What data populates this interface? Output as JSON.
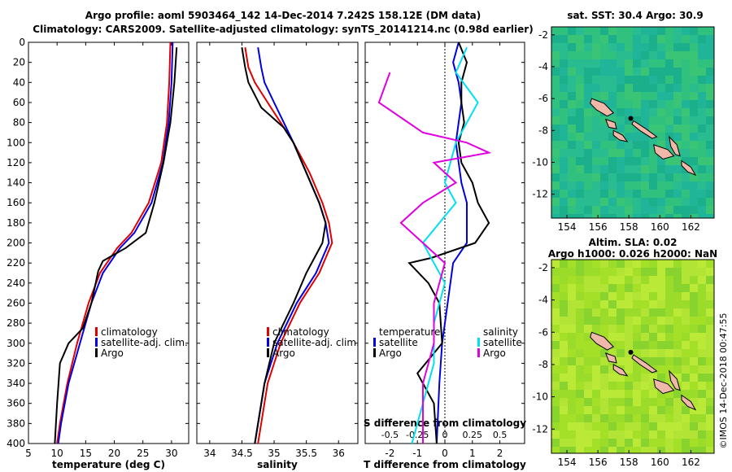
{
  "title_line1": "Argo profile: aoml 5903464_142 14-Dec-2014 7.242S 158.12E (DM data)",
  "title_line2": "Climatology: CARS2009. Satellite-adjusted climatology: synTS_20141214.nc (0.98d earlier)",
  "sst_title": "sat. SST: 30.4 Argo: 30.9",
  "sla_title1": "Altim. SLA: 0.02",
  "sla_title2": "Argo h1000: 0.026 h2000: NaN",
  "credit": "©IMOS 14-Dec-2018 00:47:55",
  "colors": {
    "climatology": "#e00000",
    "satellite": "#0000e0",
    "argo": "#000000",
    "sat_salinity": "#00e0f0",
    "clim_salinity": "#e000e0",
    "map_bg_sst": "#20b890",
    "map_bg_sla": "#a8e030",
    "land": "#f0b8a8"
  },
  "depth_ticks": [
    "0",
    "20",
    "40",
    "60",
    "80",
    "100",
    "120",
    "140",
    "160",
    "180",
    "200",
    "220",
    "240",
    "260",
    "280",
    "300",
    "320",
    "340",
    "360",
    "380",
    "400"
  ],
  "legend_profiles": [
    "climatology",
    "satellite-adj. clim.",
    "Argo"
  ],
  "legend_diff": {
    "temperature_head": "temperature",
    "salinity_head": "salinity",
    "satellite": "satellite",
    "argo": "Argo"
  },
  "chart_data": [
    {
      "type": "line",
      "title": "",
      "xlabel": "temperature (deg C)",
      "ylabel": "",
      "xlim": [
        5,
        33
      ],
      "ylim": [
        400,
        0
      ],
      "x_ticks": [
        "5",
        "10",
        "15",
        "20",
        "25",
        "30"
      ],
      "series": [
        {
          "name": "climatology",
          "points": [
            [
              29.8,
              0
            ],
            [
              29.6,
              40
            ],
            [
              29.2,
              80
            ],
            [
              28.2,
              120
            ],
            [
              26.0,
              160
            ],
            [
              23.0,
              190
            ],
            [
              20.5,
              205
            ],
            [
              17.5,
              230
            ],
            [
              15.5,
              260
            ],
            [
              13.5,
              300
            ],
            [
              11.8,
              340
            ],
            [
              10.5,
              380
            ],
            [
              10.0,
              400
            ]
          ]
        },
        {
          "name": "satellite-adj. clim.",
          "points": [
            [
              30.2,
              0
            ],
            [
              30.0,
              40
            ],
            [
              29.5,
              80
            ],
            [
              28.5,
              120
            ],
            [
              26.5,
              160
            ],
            [
              23.5,
              190
            ],
            [
              21.0,
              205
            ],
            [
              18.0,
              230
            ],
            [
              16.0,
              260
            ],
            [
              14.0,
              300
            ],
            [
              12.0,
              340
            ],
            [
              10.7,
              380
            ],
            [
              10.2,
              400
            ]
          ]
        },
        {
          "name": "Argo",
          "points": [
            [
              30.9,
              5
            ],
            [
              30.5,
              40
            ],
            [
              29.8,
              80
            ],
            [
              28.6,
              120
            ],
            [
              27.0,
              160
            ],
            [
              25.5,
              190
            ],
            [
              22.0,
              205
            ],
            [
              18.0,
              218
            ],
            [
              17.2,
              228
            ],
            [
              16.0,
              260
            ],
            [
              14.5,
              285
            ],
            [
              12.0,
              300
            ],
            [
              10.5,
              320
            ],
            [
              10.0,
              360
            ],
            [
              9.6,
              400
            ]
          ]
        }
      ]
    },
    {
      "type": "line",
      "title": "",
      "xlabel": "salinity",
      "ylabel": "",
      "xlim": [
        33.8,
        36.3
      ],
      "ylim": [
        400,
        0
      ],
      "x_ticks": [
        "34",
        "34.5",
        "35",
        "35.5",
        "36"
      ],
      "series": [
        {
          "name": "climatology",
          "points": [
            [
              34.55,
              5
            ],
            [
              34.6,
              25
            ],
            [
              34.7,
              40
            ],
            [
              34.9,
              60
            ],
            [
              35.1,
              80
            ],
            [
              35.3,
              100
            ],
            [
              35.55,
              130
            ],
            [
              35.75,
              160
            ],
            [
              35.85,
              180
            ],
            [
              35.9,
              200
            ],
            [
              35.7,
              230
            ],
            [
              35.4,
              260
            ],
            [
              35.1,
              300
            ],
            [
              34.9,
              340
            ],
            [
              34.75,
              400
            ]
          ]
        },
        {
          "name": "satellite-adj. clim.",
          "points": [
            [
              34.75,
              5
            ],
            [
              34.8,
              25
            ],
            [
              34.85,
              40
            ],
            [
              35.0,
              60
            ],
            [
              35.15,
              80
            ],
            [
              35.3,
              100
            ],
            [
              35.5,
              130
            ],
            [
              35.7,
              160
            ],
            [
              35.8,
              180
            ],
            [
              35.85,
              200
            ],
            [
              35.65,
              230
            ],
            [
              35.35,
              260
            ],
            [
              35.05,
              300
            ],
            [
              34.85,
              340
            ],
            [
              34.7,
              400
            ]
          ]
        },
        {
          "name": "Argo",
          "points": [
            [
              34.5,
              5
            ],
            [
              34.55,
              25
            ],
            [
              34.6,
              40
            ],
            [
              34.8,
              65
            ],
            [
              35.15,
              85
            ],
            [
              35.3,
              100
            ],
            [
              35.5,
              130
            ],
            [
              35.7,
              160
            ],
            [
              35.8,
              180
            ],
            [
              35.75,
              200
            ],
            [
              35.5,
              230
            ],
            [
              35.3,
              260
            ],
            [
              35.0,
              300
            ],
            [
              34.85,
              340
            ],
            [
              34.7,
              400
            ]
          ]
        }
      ]
    },
    {
      "type": "line",
      "title": "",
      "xlabel": "T difference from climatology",
      "x2label": "S difference from climatology",
      "ylabel": "",
      "xlim": [
        -2.9,
        2.9
      ],
      "ylim": [
        400,
        0
      ],
      "x_ticks": [
        "-2",
        "-1",
        "0",
        "1",
        "2"
      ],
      "x2_ticks": [
        "-0.5",
        "-0.25",
        "0",
        "0.25",
        "0.5"
      ],
      "series": [
        {
          "name": "temperature satellite",
          "points": [
            [
              0.5,
              0
            ],
            [
              0.3,
              20
            ],
            [
              0.5,
              40
            ],
            [
              0.6,
              60
            ],
            [
              0.4,
              100
            ],
            [
              0.5,
              120
            ],
            [
              0.6,
              140
            ],
            [
              0.8,
              160
            ],
            [
              0.8,
              180
            ],
            [
              0.8,
              200
            ],
            [
              0.3,
              220
            ],
            [
              0.1,
              260
            ],
            [
              -0.1,
              300
            ],
            [
              -0.2,
              340
            ],
            [
              -0.3,
              400
            ]
          ]
        },
        {
          "name": "temperature Argo",
          "points": [
            [
              0.5,
              0
            ],
            [
              0.8,
              20
            ],
            [
              0.6,
              40
            ],
            [
              0.6,
              60
            ],
            [
              0.7,
              80
            ],
            [
              0.5,
              100
            ],
            [
              0.6,
              120
            ],
            [
              1.0,
              140
            ],
            [
              1.2,
              160
            ],
            [
              1.6,
              180
            ],
            [
              1.1,
              200
            ],
            [
              -0.5,
              215
            ],
            [
              -1.3,
              220
            ],
            [
              -0.6,
              240
            ],
            [
              -0.2,
              260
            ],
            [
              -0.1,
              300
            ],
            [
              -1.0,
              330
            ],
            [
              -0.4,
              360
            ],
            [
              -0.3,
              400
            ]
          ]
        },
        {
          "name": "salinity satellite",
          "points": [
            [
              0.2,
              5
            ],
            [
              0.1,
              30
            ],
            [
              0.3,
              60
            ],
            [
              0.1,
              100
            ],
            [
              0.0,
              140
            ],
            [
              0.1,
              160
            ],
            [
              -0.2,
              200
            ],
            [
              0.0,
              240
            ],
            [
              -0.1,
              280
            ],
            [
              -0.1,
              320
            ],
            [
              -0.2,
              360
            ],
            [
              -0.3,
              400
            ]
          ]
        },
        {
          "name": "salinity climatology",
          "points": [
            [
              -0.5,
              30
            ],
            [
              -0.6,
              60
            ],
            [
              -0.2,
              90
            ],
            [
              0.2,
              100
            ],
            [
              0.4,
              110
            ],
            [
              -0.1,
              120
            ],
            [
              0.1,
              140
            ],
            [
              -0.2,
              160
            ],
            [
              -0.4,
              180
            ],
            [
              -0.2,
              200
            ],
            [
              0.0,
              220
            ],
            [
              -0.1,
              260
            ],
            [
              -0.1,
              300
            ],
            [
              -0.2,
              340
            ],
            [
              -0.2,
              400
            ]
          ]
        }
      ]
    },
    {
      "type": "heatmap",
      "title": "sat. SST: 30.4 Argo: 30.9",
      "xlabel": "",
      "ylabel": "",
      "xlim": [
        153,
        163.5
      ],
      "ylim": [
        -13.5,
        -1.5
      ],
      "x_ticks": [
        "154",
        "156",
        "158",
        "160",
        "162"
      ],
      "y_ticks": [
        "-2",
        "-4",
        "-6",
        "-8",
        "-10",
        "-12"
      ]
    },
    {
      "type": "heatmap",
      "title": "Altim. SLA: 0.02 / Argo h1000: 0.026 h2000: NaN",
      "xlabel": "",
      "ylabel": "",
      "xlim": [
        153,
        163.5
      ],
      "ylim": [
        -13.5,
        -1.5
      ],
      "x_ticks": [
        "154",
        "156",
        "158",
        "160",
        "162"
      ],
      "y_ticks": [
        "-2",
        "-4",
        "-6",
        "-8",
        "-10",
        "-12"
      ]
    }
  ]
}
